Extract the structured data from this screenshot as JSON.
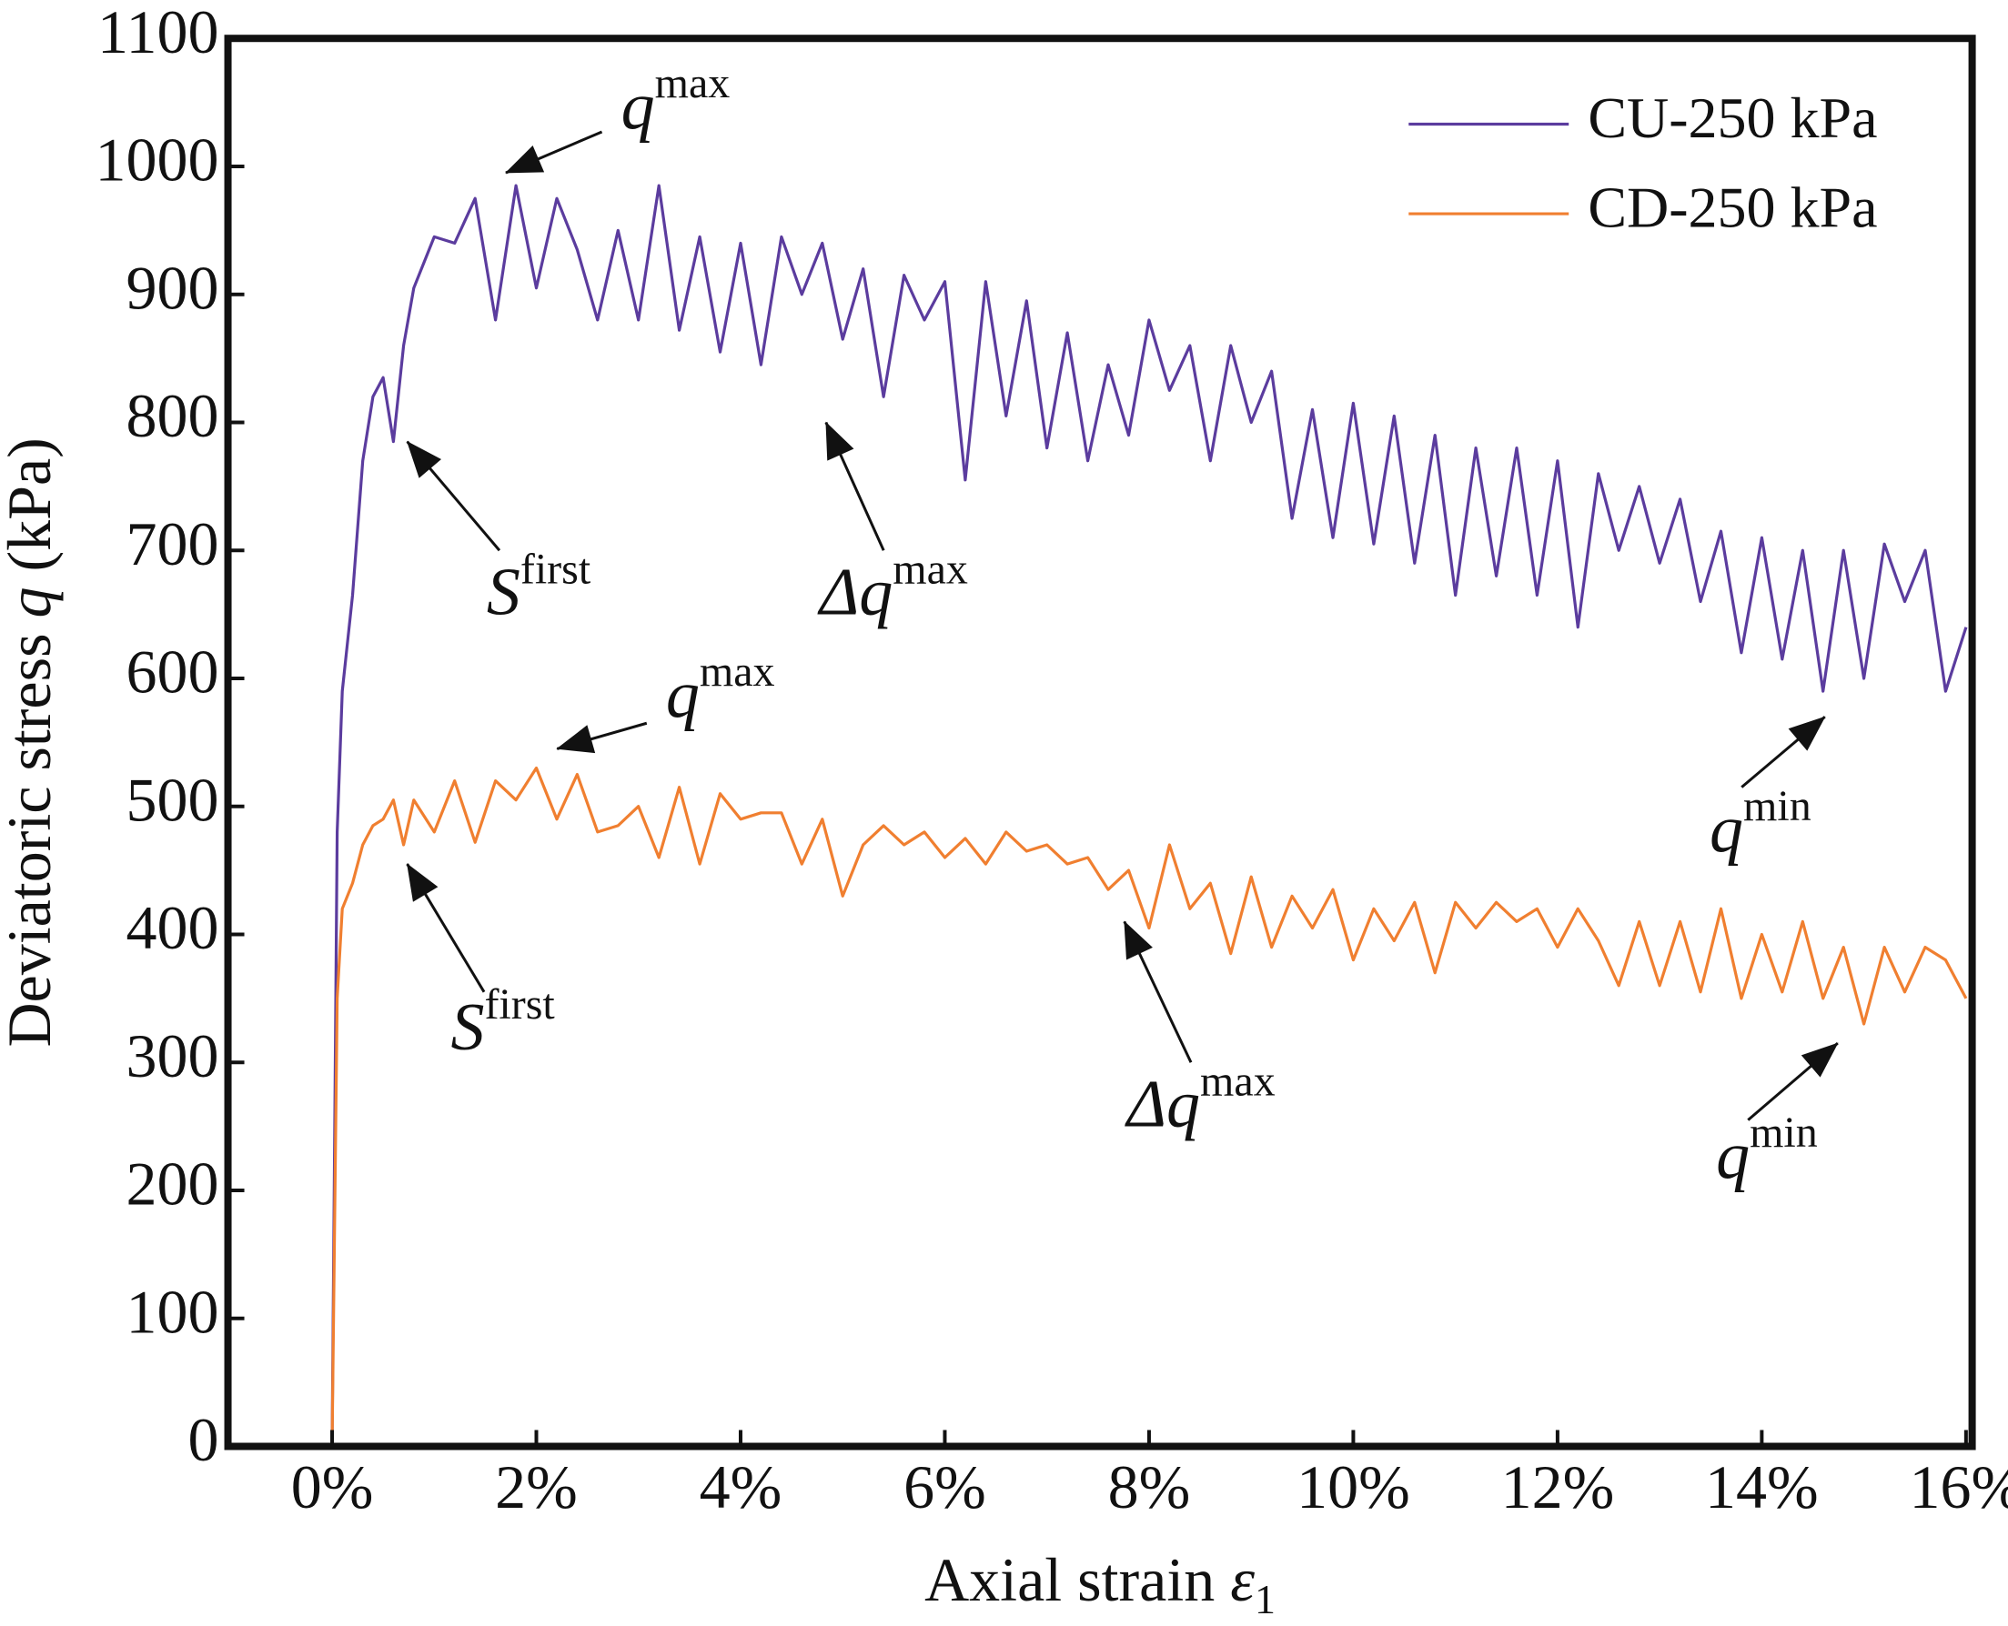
{
  "chart_data": {
    "type": "line",
    "ylabel": {
      "pre": "Deviatoric stress ",
      "var": "q",
      "post": " (kPa)"
    },
    "xlabel": {
      "pre": "Axial strain ",
      "var": "ε",
      "sub": "1"
    },
    "x": [
      0,
      0.05,
      0.1,
      0.2,
      0.3,
      0.4,
      0.5,
      0.6,
      0.7,
      0.8,
      1.0,
      1.2,
      1.4,
      1.6,
      1.8,
      2.0,
      2.2,
      2.4,
      2.6,
      2.8,
      3.0,
      3.2,
      3.4,
      3.6,
      3.8,
      4.0,
      4.2,
      4.4,
      4.6,
      4.8,
      5.0,
      5.2,
      5.4,
      5.6,
      5.8,
      6.0,
      6.2,
      6.4,
      6.6,
      6.8,
      7.0,
      7.2,
      7.4,
      7.6,
      7.8,
      8.0,
      8.2,
      8.4,
      8.6,
      8.8,
      9.0,
      9.2,
      9.4,
      9.6,
      9.8,
      10.0,
      10.2,
      10.4,
      10.6,
      10.8,
      11.0,
      11.2,
      11.4,
      11.6,
      11.8,
      12.0,
      12.2,
      12.4,
      12.6,
      12.8,
      13.0,
      13.2,
      13.4,
      13.6,
      13.8,
      14.0,
      14.2,
      14.4,
      14.6,
      14.8,
      15.0,
      15.2,
      15.4,
      15.6,
      15.8,
      16.0
    ],
    "series": [
      {
        "name": "CU-250 kPa",
        "color": "#5b3c9e",
        "values": [
          0,
          480,
          590,
          665,
          770,
          820,
          835,
          785,
          860,
          905,
          945,
          940,
          975,
          880,
          985,
          905,
          975,
          935,
          880,
          950,
          880,
          985,
          872,
          945,
          855,
          940,
          845,
          945,
          900,
          940,
          865,
          920,
          820,
          915,
          880,
          910,
          755,
          910,
          805,
          895,
          780,
          870,
          770,
          845,
          790,
          880,
          825,
          860,
          770,
          860,
          800,
          840,
          725,
          810,
          710,
          815,
          705,
          805,
          690,
          790,
          665,
          780,
          680,
          780,
          665,
          770,
          640,
          760,
          700,
          750,
          690,
          740,
          660,
          715,
          620,
          710,
          615,
          700,
          590,
          700,
          600,
          705,
          660,
          700,
          590,
          640
        ]
      },
      {
        "name": "CD-250 kPa",
        "color": "#f07f30",
        "values": [
          0,
          350,
          420,
          440,
          470,
          485,
          490,
          505,
          470,
          505,
          480,
          520,
          472,
          520,
          505,
          530,
          490,
          525,
          480,
          485,
          500,
          460,
          515,
          455,
          510,
          490,
          495,
          495,
          455,
          490,
          430,
          470,
          485,
          470,
          480,
          460,
          475,
          455,
          480,
          465,
          470,
          455,
          460,
          435,
          450,
          405,
          470,
          420,
          440,
          385,
          445,
          390,
          430,
          405,
          435,
          380,
          420,
          395,
          425,
          370,
          425,
          405,
          425,
          410,
          420,
          390,
          420,
          395,
          360,
          410,
          360,
          410,
          355,
          420,
          350,
          400,
          355,
          410,
          350,
          390,
          330,
          390,
          355,
          390,
          380,
          350
        ]
      }
    ],
    "xlim": [
      -1.02,
      16.06
    ],
    "ylim": [
      0,
      1100
    ],
    "xticks": [
      {
        "value": 0,
        "label": "0%"
      },
      {
        "value": 2,
        "label": "2%"
      },
      {
        "value": 4,
        "label": "4%"
      },
      {
        "value": 6,
        "label": "6%"
      },
      {
        "value": 8,
        "label": "8%"
      },
      {
        "value": 10,
        "label": "10%"
      },
      {
        "value": 12,
        "label": "12%"
      },
      {
        "value": 14,
        "label": "14%"
      },
      {
        "value": 16,
        "label": "16%"
      }
    ],
    "yticks": [
      0,
      100,
      200,
      300,
      400,
      500,
      600,
      700,
      800,
      900,
      1000,
      1100
    ],
    "legend": "upper right",
    "annotations": [
      {
        "text": "q",
        "sup": "max"
      },
      {
        "text": "S",
        "sup": "first"
      },
      {
        "text": "Δq",
        "sup": "max"
      },
      {
        "text": "q",
        "sup": "min"
      },
      {
        "text": "q",
        "sup": "max"
      },
      {
        "text": "S",
        "sup": "first"
      },
      {
        "text": "Δq",
        "sup": "max"
      },
      {
        "text": "q",
        "sup": "min"
      }
    ]
  }
}
